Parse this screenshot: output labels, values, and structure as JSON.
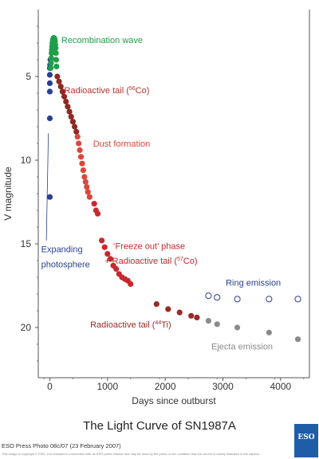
{
  "title": "The Light Curve of SN1987A",
  "credit": "ESO Press Photo 08c/07 (23 February 2007)",
  "fineprint": "This image is copyright © ESO. It is released in connection with an ESO press release and may be used by the press on the condition that the source is clearly indicated in the caption.",
  "logo_text": "ESO",
  "chart_data": {
    "type": "scatter",
    "title": "The Light Curve of SN1987A",
    "xlabel": "Days since outburst",
    "ylabel": "V magnitude",
    "xlim": [
      -200,
      4500
    ],
    "ylim": [
      23,
      1
    ],
    "y_inverted": true,
    "xticks": [
      0,
      1000,
      2000,
      3000,
      4000
    ],
    "yticks": [
      5,
      10,
      15,
      20
    ],
    "grid": false,
    "series": [
      {
        "name": "Expanding photosphere",
        "color": "#2a3f8f",
        "marker": "filled",
        "points": [
          [
            0,
            4.5
          ],
          [
            0,
            4.9
          ],
          [
            0,
            5.4
          ],
          [
            0,
            5.9
          ],
          [
            0,
            7.5
          ],
          [
            0,
            12.2
          ],
          [
            5,
            4.3
          ],
          [
            10,
            4.0
          ]
        ]
      },
      {
        "name": "Recombination wave",
        "color": "#1f9e4a",
        "marker": "filled",
        "points": [
          [
            15,
            4.5
          ],
          [
            20,
            4.2
          ],
          [
            25,
            3.9
          ],
          [
            30,
            3.6
          ],
          [
            35,
            3.4
          ],
          [
            40,
            3.2
          ],
          [
            45,
            3.0
          ],
          [
            50,
            2.9
          ],
          [
            55,
            2.8
          ],
          [
            60,
            2.75
          ],
          [
            65,
            2.7
          ],
          [
            70,
            2.7
          ],
          [
            75,
            2.7
          ],
          [
            80,
            2.75
          ],
          [
            85,
            2.8
          ],
          [
            90,
            2.9
          ],
          [
            95,
            3.1
          ],
          [
            100,
            3.3
          ],
          [
            105,
            3.6
          ],
          [
            110,
            4.0
          ],
          [
            115,
            4.4
          ]
        ]
      },
      {
        "name": "Radioactive tail (56Co)",
        "color": "#8e2a24",
        "marker": "filled",
        "points": [
          [
            130,
            5.0
          ],
          [
            160,
            5.3
          ],
          [
            190,
            5.6
          ],
          [
            220,
            5.9
          ],
          [
            250,
            6.2
          ],
          [
            280,
            6.5
          ],
          [
            310,
            6.8
          ],
          [
            340,
            7.1
          ],
          [
            370,
            7.4
          ],
          [
            400,
            7.7
          ],
          [
            430,
            8.0
          ],
          [
            460,
            8.3
          ]
        ]
      },
      {
        "name": "Dust formation",
        "color": "#d9483b",
        "marker": "filled",
        "points": [
          [
            480,
            8.6
          ],
          [
            500,
            9.0
          ],
          [
            520,
            9.4
          ],
          [
            540,
            9.8
          ],
          [
            560,
            10.2
          ],
          [
            580,
            10.6
          ],
          [
            600,
            11.0
          ],
          [
            620,
            11.3
          ],
          [
            640,
            11.6
          ],
          [
            660,
            11.9
          ],
          [
            690,
            12.2
          ]
        ]
      },
      {
        "name": "Freeze out phase",
        "color": "#c8282f",
        "marker": "filled",
        "points": [
          [
            770,
            12.6
          ],
          [
            800,
            13.0
          ],
          [
            830,
            13.2
          ],
          [
            900,
            14.8
          ],
          [
            950,
            15.2
          ],
          [
            1000,
            15.6
          ],
          [
            1050,
            15.9
          ],
          [
            1100,
            16.3
          ],
          [
            1150,
            16.5
          ],
          [
            1200,
            16.8
          ],
          [
            1250,
            17.0
          ],
          [
            1300,
            17.1
          ],
          [
            1350,
            17.2
          ],
          [
            1400,
            17.4
          ]
        ]
      },
      {
        "name": "Radioactive tail (44Ti)",
        "color": "#9a2a27",
        "marker": "filled",
        "points": [
          [
            1850,
            18.6
          ],
          [
            2050,
            18.9
          ],
          [
            2250,
            19.1
          ],
          [
            2450,
            19.3
          ],
          [
            2550,
            19.4
          ]
        ]
      },
      {
        "name": "Ejecta emission",
        "color": "#8a8a8a",
        "marker": "filled",
        "points": [
          [
            2750,
            19.6
          ],
          [
            2900,
            19.8
          ],
          [
            3250,
            20.0
          ],
          [
            3800,
            20.3
          ],
          [
            4300,
            20.7
          ]
        ]
      },
      {
        "name": "Ring emission",
        "color": "#2a3f8f",
        "marker": "open",
        "points": [
          [
            2750,
            18.1
          ],
          [
            2900,
            18.2
          ],
          [
            3250,
            18.3
          ],
          [
            3800,
            18.3
          ],
          [
            4300,
            18.3
          ]
        ]
      }
    ],
    "annotations": [
      {
        "text": "Recombination wave",
        "color": "#1f9e4a",
        "x": 200,
        "y": 3.0
      },
      {
        "text": "Radioactive tail (",
        "sup": "56",
        "tail": "Co)",
        "color": "#b5352d",
        "x": 250,
        "y": 6.0
      },
      {
        "text": "Dust formation",
        "color": "#d9483b",
        "x": 750,
        "y": 9.2
      },
      {
        "text": "Expanding",
        "color": "#2a3f8f",
        "x": -150,
        "y": 15.5
      },
      {
        "text": "photosphere",
        "color": "#2a3f8f",
        "x": -150,
        "y": 16.4
      },
      {
        "text": "‘Freeze out’ phase",
        "color": "#c8282f",
        "x": 1100,
        "y": 15.3
      },
      {
        "text": "+ Radioactive tail (",
        "sup": "57",
        "tail": "Co)",
        "color": "#c8282f",
        "x": 950,
        "y": 16.2
      },
      {
        "text": "Ring emission",
        "color": "#2a3f8f",
        "x": 3050,
        "y": 17.5
      },
      {
        "text": "Radioactive tail (",
        "sup": "44",
        "tail": "Ti)",
        "color": "#9a2a27",
        "x": 700,
        "y": 20.0
      },
      {
        "text": "Ejecta emission",
        "color": "#8a8a8a",
        "x": 2800,
        "y": 21.3
      }
    ]
  }
}
